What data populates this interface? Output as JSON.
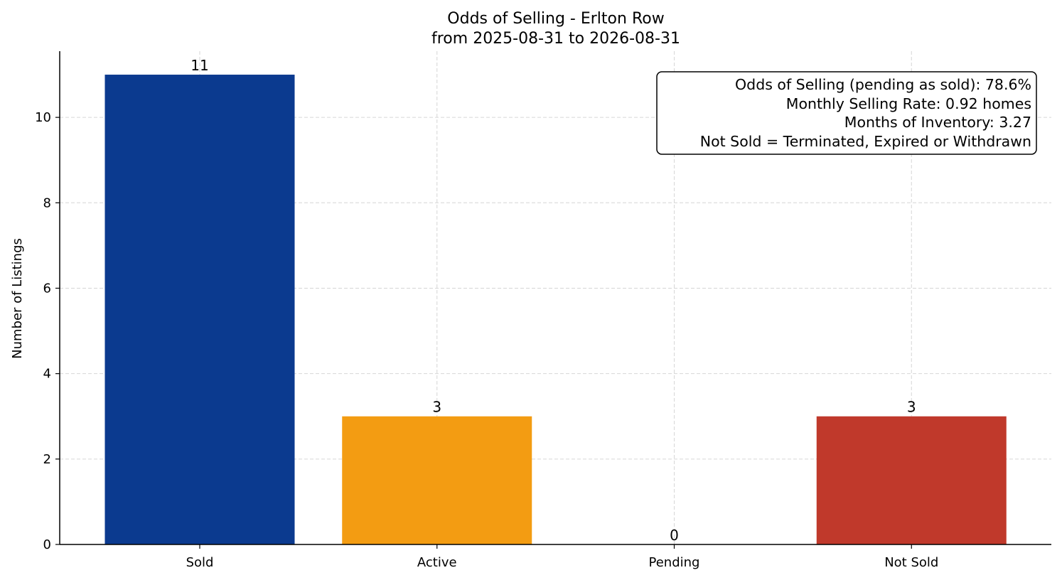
{
  "chart_data": {
    "type": "bar",
    "title": "Odds of Selling - Erlton Row",
    "subtitle": "from 2025-08-31 to 2026-08-31",
    "xlabel": "",
    "ylabel": "Number of Listings",
    "categories": [
      "Sold",
      "Active",
      "Pending",
      "Not Sold"
    ],
    "values": [
      11,
      3,
      0,
      3
    ],
    "data_labels": [
      "11",
      "3",
      "0",
      "3"
    ],
    "colors": [
      "#0b3a8f",
      "#f39c12",
      "#f39c12",
      "#c0392b"
    ],
    "ylim": [
      0,
      11.55
    ],
    "yticks": [
      0,
      2,
      4,
      6,
      8,
      10
    ],
    "grid": true,
    "annotation_box": {
      "placement": "top-right",
      "lines": [
        "Odds of Selling (pending as sold): 78.6%",
        "Monthly Selling Rate: 0.92 homes",
        "Months of Inventory: 3.27",
        "Not Sold = Terminated, Expired or Withdrawn"
      ]
    }
  }
}
